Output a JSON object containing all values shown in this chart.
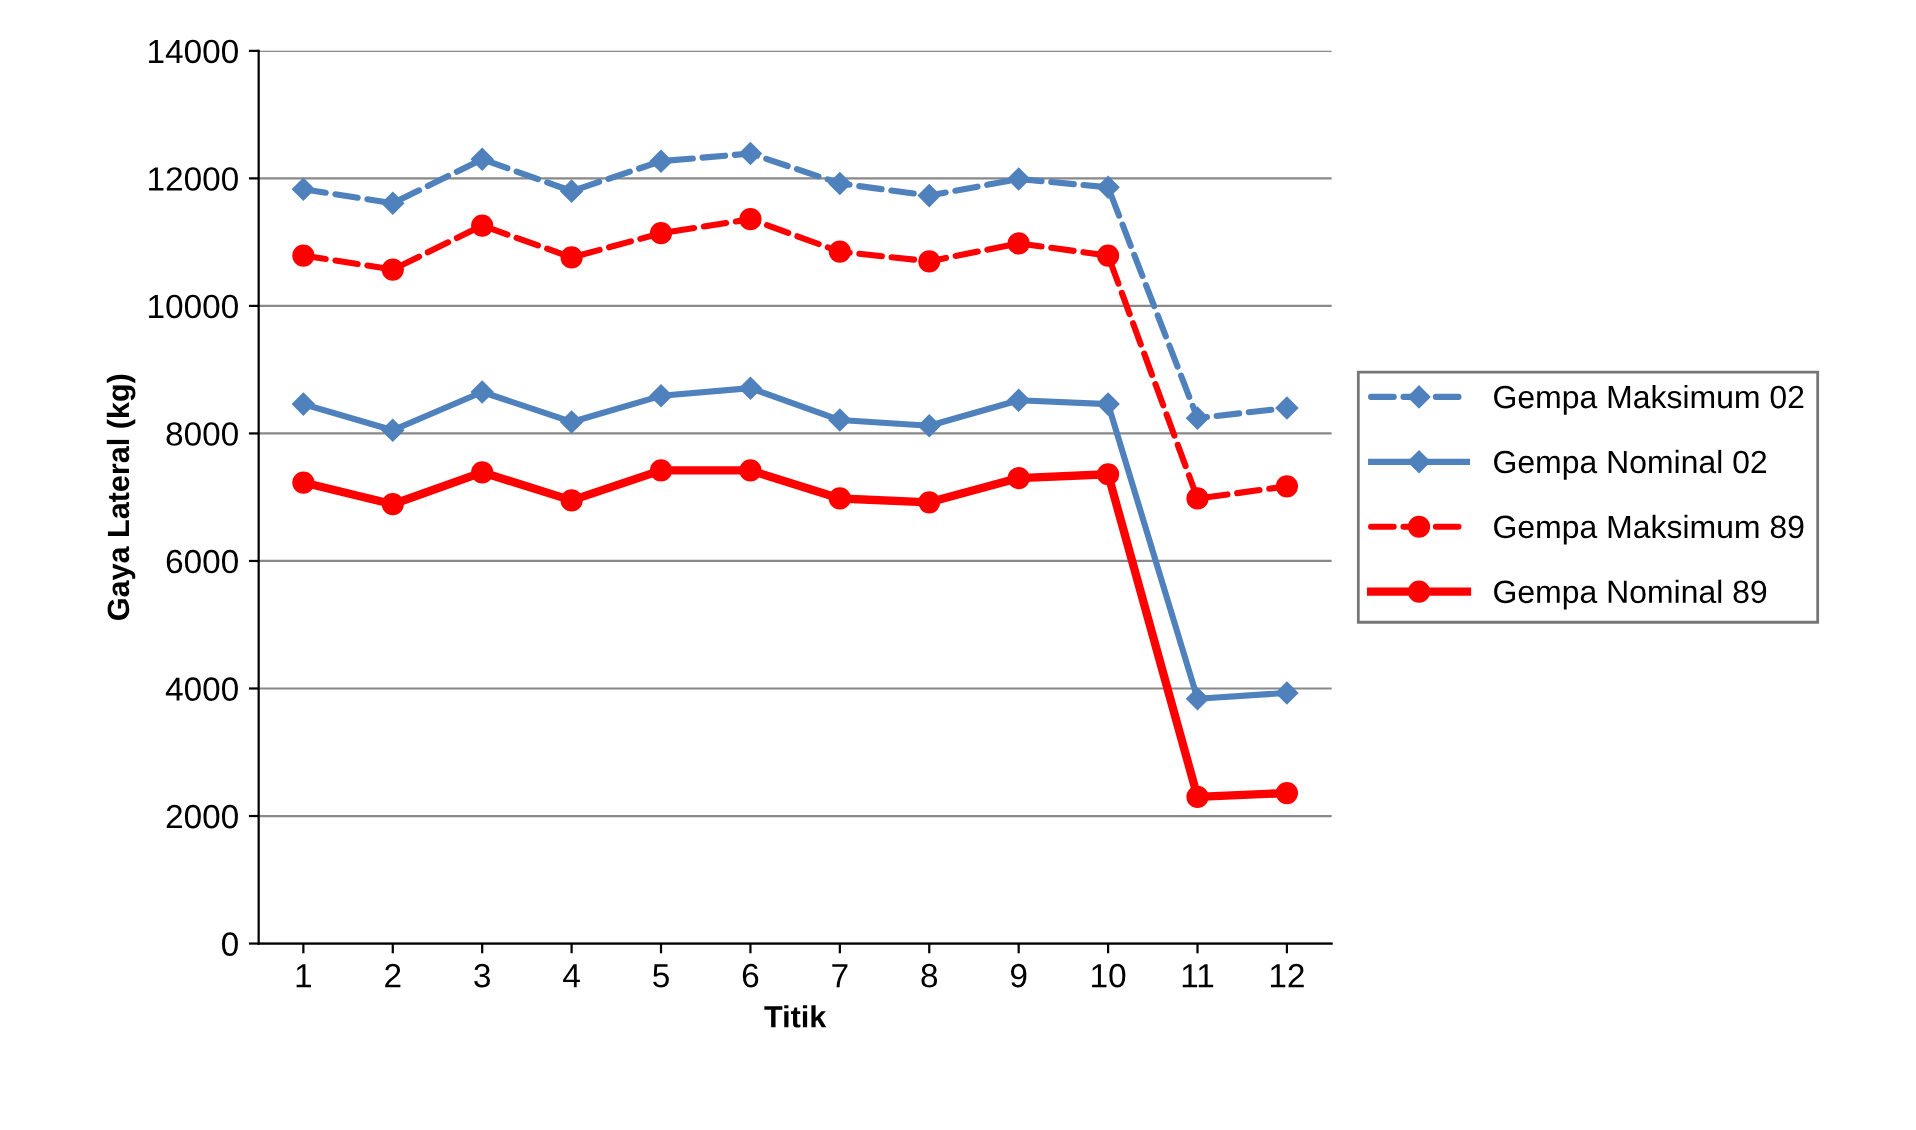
{
  "chart_data": {
    "type": "line",
    "xlabel": "Titik",
    "ylabel": "Gaya Lateral (kg)",
    "categories": [
      "1",
      "2",
      "3",
      "4",
      "5",
      "6",
      "7",
      "8",
      "9",
      "10",
      "11",
      "12"
    ],
    "series": [
      {
        "name": "Gempa Maksimum 02",
        "color": "#4f81bd",
        "line_style": "dashed",
        "marker": "diamond",
        "values": [
          11830,
          11610,
          12300,
          11800,
          12270,
          12390,
          11920,
          11730,
          11990,
          11860,
          8240,
          8400
        ]
      },
      {
        "name": "Gempa Nominal 02",
        "color": "#4f81bd",
        "line_style": "solid",
        "marker": "diamond",
        "values": [
          8460,
          8050,
          8650,
          8180,
          8590,
          8710,
          8210,
          8120,
          8520,
          8460,
          3840,
          3930
        ]
      },
      {
        "name": "Gempa Maksimum 89",
        "color": "#ff0000",
        "line_style": "dashed",
        "marker": "circle",
        "values": [
          10790,
          10570,
          11260,
          10760,
          11140,
          11360,
          10850,
          10700,
          10980,
          10790,
          6980,
          7170
        ]
      },
      {
        "name": "Gempa Nominal 89",
        "color": "#ff0000",
        "line_style": "solid",
        "marker": "circle",
        "values": [
          7230,
          6890,
          7390,
          6950,
          7420,
          7420,
          6980,
          6920,
          7300,
          7360,
          2300,
          2360
        ]
      }
    ],
    "ylim": [
      0,
      14000
    ],
    "yticks": [
      0,
      2000,
      4000,
      6000,
      8000,
      10000,
      12000,
      14000
    ],
    "grid": "y",
    "legend": "right"
  }
}
